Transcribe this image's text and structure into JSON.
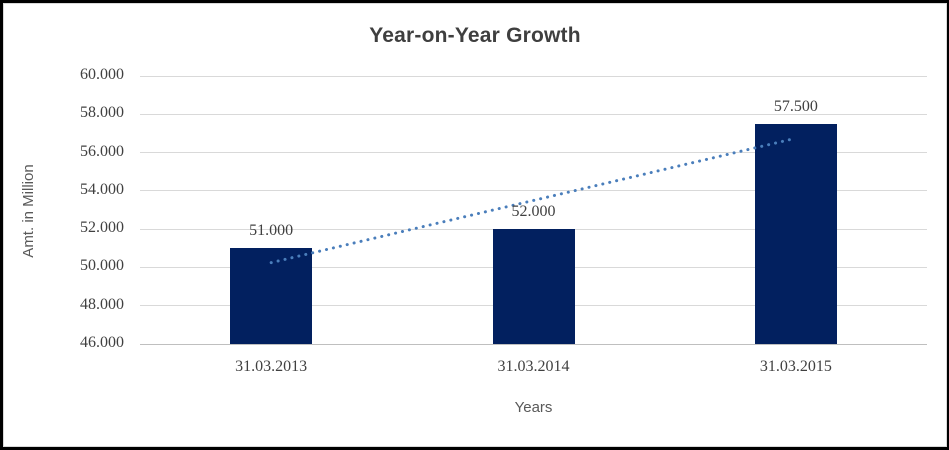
{
  "chart_data": {
    "type": "bar",
    "title": "Year-on-Year Growth",
    "xlabel": "Years",
    "ylabel": "Amt. in Million",
    "categories": [
      "31.03.2013",
      "31.03.2014",
      "31.03.2015"
    ],
    "series": [
      {
        "name": "Amt. in Million",
        "values": [
          51.0,
          52.0,
          57.5
        ]
      }
    ],
    "value_labels": [
      "51.000",
      "52.000",
      "57.500"
    ],
    "ylim": [
      46,
      60
    ],
    "yticks": [
      {
        "value": 46,
        "label": "46.000"
      },
      {
        "value": 48,
        "label": "48.000"
      },
      {
        "value": 50,
        "label": "50.000"
      },
      {
        "value": 52,
        "label": "52.000"
      },
      {
        "value": 54,
        "label": "54.000"
      },
      {
        "value": 56,
        "label": "56.000"
      },
      {
        "value": 58,
        "label": "58.000"
      },
      {
        "value": 60,
        "label": "60.000"
      }
    ],
    "grid": "horizontal",
    "legend": "none",
    "trendline": {
      "type": "linear",
      "y_start": 50.25,
      "y_end": 56.75,
      "style": "dotted"
    },
    "colors": {
      "bar": "#02205F",
      "trendline": "#4A7EBB",
      "gridline": "#D9D9D9",
      "axis_line": "#BFBFBF",
      "title_text": "#3F3F3F",
      "tick_text": "#404040",
      "axis_title_text": "#595959",
      "background": "#FFFFFF",
      "frame": "#000000"
    }
  }
}
